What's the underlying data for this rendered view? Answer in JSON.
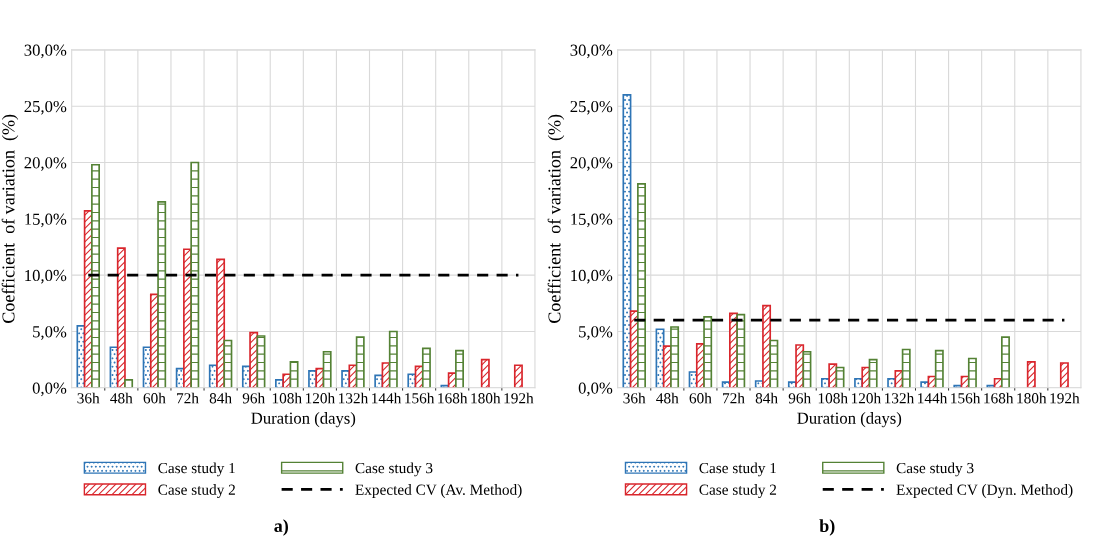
{
  "chart_data": [
    {
      "type": "bar",
      "xlabel": "Duration (days)",
      "ylabel": "Coefficient  of variation  (%)",
      "categories": [
        "36h",
        "48h",
        "60h",
        "72h",
        "84h",
        "96h",
        "108h",
        "120h",
        "132h",
        "144h",
        "156h",
        "168h",
        "180h",
        "192h"
      ],
      "series": [
        {
          "name": "Case study 1",
          "color": "#2e75b6",
          "values": [
            5.5,
            3.6,
            3.6,
            1.7,
            2.0,
            1.9,
            0.7,
            1.5,
            1.5,
            1.1,
            1.2,
            0.2,
            null,
            null
          ]
        },
        {
          "name": "Case study 2",
          "color": "#d9262c",
          "values": [
            15.7,
            12.4,
            8.3,
            12.3,
            11.4,
            4.9,
            1.2,
            1.7,
            2.0,
            2.2,
            1.9,
            1.3,
            2.5,
            2.0
          ]
        },
        {
          "name": "Case study 3",
          "color": "#548235",
          "values": [
            19.8,
            0.7,
            16.5,
            20.0,
            4.2,
            4.6,
            2.3,
            3.2,
            4.5,
            5.0,
            3.5,
            3.3,
            null,
            null
          ]
        }
      ],
      "ref_lines": [
        {
          "axis": "y",
          "value": 10.0,
          "label": "Expected CV (Av. Method)",
          "color": "#000000",
          "line_style": "dashed"
        }
      ],
      "ylim": [
        0,
        30
      ],
      "yticks": [
        {
          "value": 0,
          "label": "0,0%"
        },
        {
          "value": 5,
          "label": "5,0%"
        },
        {
          "value": 10,
          "label": "10,0%"
        },
        {
          "value": 15,
          "label": "15,0%"
        },
        {
          "value": 20,
          "label": "20,0%"
        },
        {
          "value": 25,
          "label": "25,0%"
        },
        {
          "value": 30,
          "label": "30,0%"
        }
      ],
      "grid": true,
      "legend": "bottom",
      "annotations": [
        "a)"
      ]
    },
    {
      "type": "bar",
      "xlabel": "Duration (days)",
      "ylabel": "Coefficient  of variation  (%)",
      "categories": [
        "36h",
        "48h",
        "60h",
        "72h",
        "84h",
        "96h",
        "108h",
        "120h",
        "132h",
        "144h",
        "156h",
        "168h",
        "180h",
        "192h"
      ],
      "series": [
        {
          "name": "Case study 1",
          "color": "#2e75b6",
          "values": [
            26.0,
            5.2,
            1.4,
            0.5,
            0.6,
            0.5,
            0.8,
            0.8,
            0.8,
            0.5,
            0.2,
            0.2,
            null,
            null
          ]
        },
        {
          "name": "Case study 2",
          "color": "#d9262c",
          "values": [
            6.8,
            3.7,
            3.9,
            6.6,
            7.3,
            3.8,
            2.1,
            1.8,
            1.5,
            1.0,
            1.0,
            0.8,
            2.3,
            2.2
          ]
        },
        {
          "name": "Case study 3",
          "color": "#548235",
          "values": [
            18.1,
            5.4,
            6.3,
            6.5,
            4.2,
            3.2,
            1.8,
            2.5,
            3.4,
            3.3,
            2.6,
            4.5,
            null,
            null
          ]
        }
      ],
      "ref_lines": [
        {
          "axis": "y",
          "value": 6.0,
          "label": "Expected CV (Dyn. Method)",
          "color": "#000000",
          "line_style": "dashed"
        }
      ],
      "ylim": [
        0,
        30
      ],
      "yticks": [
        {
          "value": 0,
          "label": "0,0%"
        },
        {
          "value": 5,
          "label": "5,0%"
        },
        {
          "value": 10,
          "label": "10,0%"
        },
        {
          "value": 15,
          "label": "15,0%"
        },
        {
          "value": 20,
          "label": "20,0%"
        },
        {
          "value": 25,
          "label": "25,0%"
        },
        {
          "value": 30,
          "label": "30,0%"
        }
      ],
      "grid": true,
      "legend": "bottom",
      "annotations": [
        "b)"
      ]
    }
  ]
}
